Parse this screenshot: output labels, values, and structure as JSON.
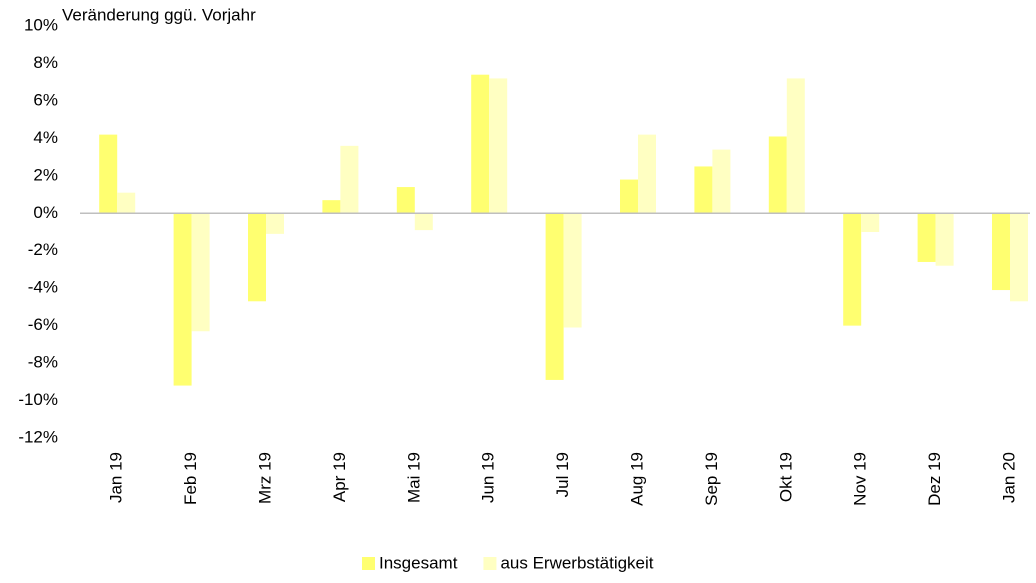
{
  "chart_data": {
    "type": "bar",
    "title": "Veränderung ggü. Vorjahr",
    "categories": [
      "Jan 19",
      "Feb 19",
      "Mrz 19",
      "Apr 19",
      "Mai 19",
      "Jun 19",
      "Jul 19",
      "Aug 19",
      "Sep 19",
      "Okt 19",
      "Nov 19",
      "Dez 19",
      "Jan 20"
    ],
    "series": [
      {
        "name": "Insgesamt",
        "color": "#ffff70",
        "values": [
          4.2,
          -9.2,
          -4.7,
          0.7,
          1.4,
          7.4,
          -8.9,
          1.8,
          2.5,
          4.1,
          -6.0,
          -2.6,
          -4.1
        ]
      },
      {
        "name": "aus Erwerbstätigkeit",
        "color": "#ffffc2",
        "values": [
          1.1,
          -6.3,
          -1.1,
          3.6,
          -0.9,
          7.2,
          -6.1,
          4.2,
          3.4,
          7.2,
          -1.0,
          -2.8,
          -4.7
        ]
      }
    ],
    "ylim": [
      -12,
      10
    ],
    "yticks": [
      {
        "value": -12,
        "label": "-12%"
      },
      {
        "value": -10,
        "label": "-10%"
      },
      {
        "value": -8,
        "label": "-8%"
      },
      {
        "value": -6,
        "label": "-6%"
      },
      {
        "value": -4,
        "label": "-4%"
      },
      {
        "value": -2,
        "label": "-2%"
      },
      {
        "value": 0,
        "label": "0%"
      },
      {
        "value": 2,
        "label": "2%"
      },
      {
        "value": 4,
        "label": "4%"
      },
      {
        "value": 6,
        "label": "6%"
      },
      {
        "value": 8,
        "label": "8%"
      },
      {
        "value": 10,
        "label": "10%"
      }
    ],
    "grid": false,
    "legend": "bottom"
  }
}
